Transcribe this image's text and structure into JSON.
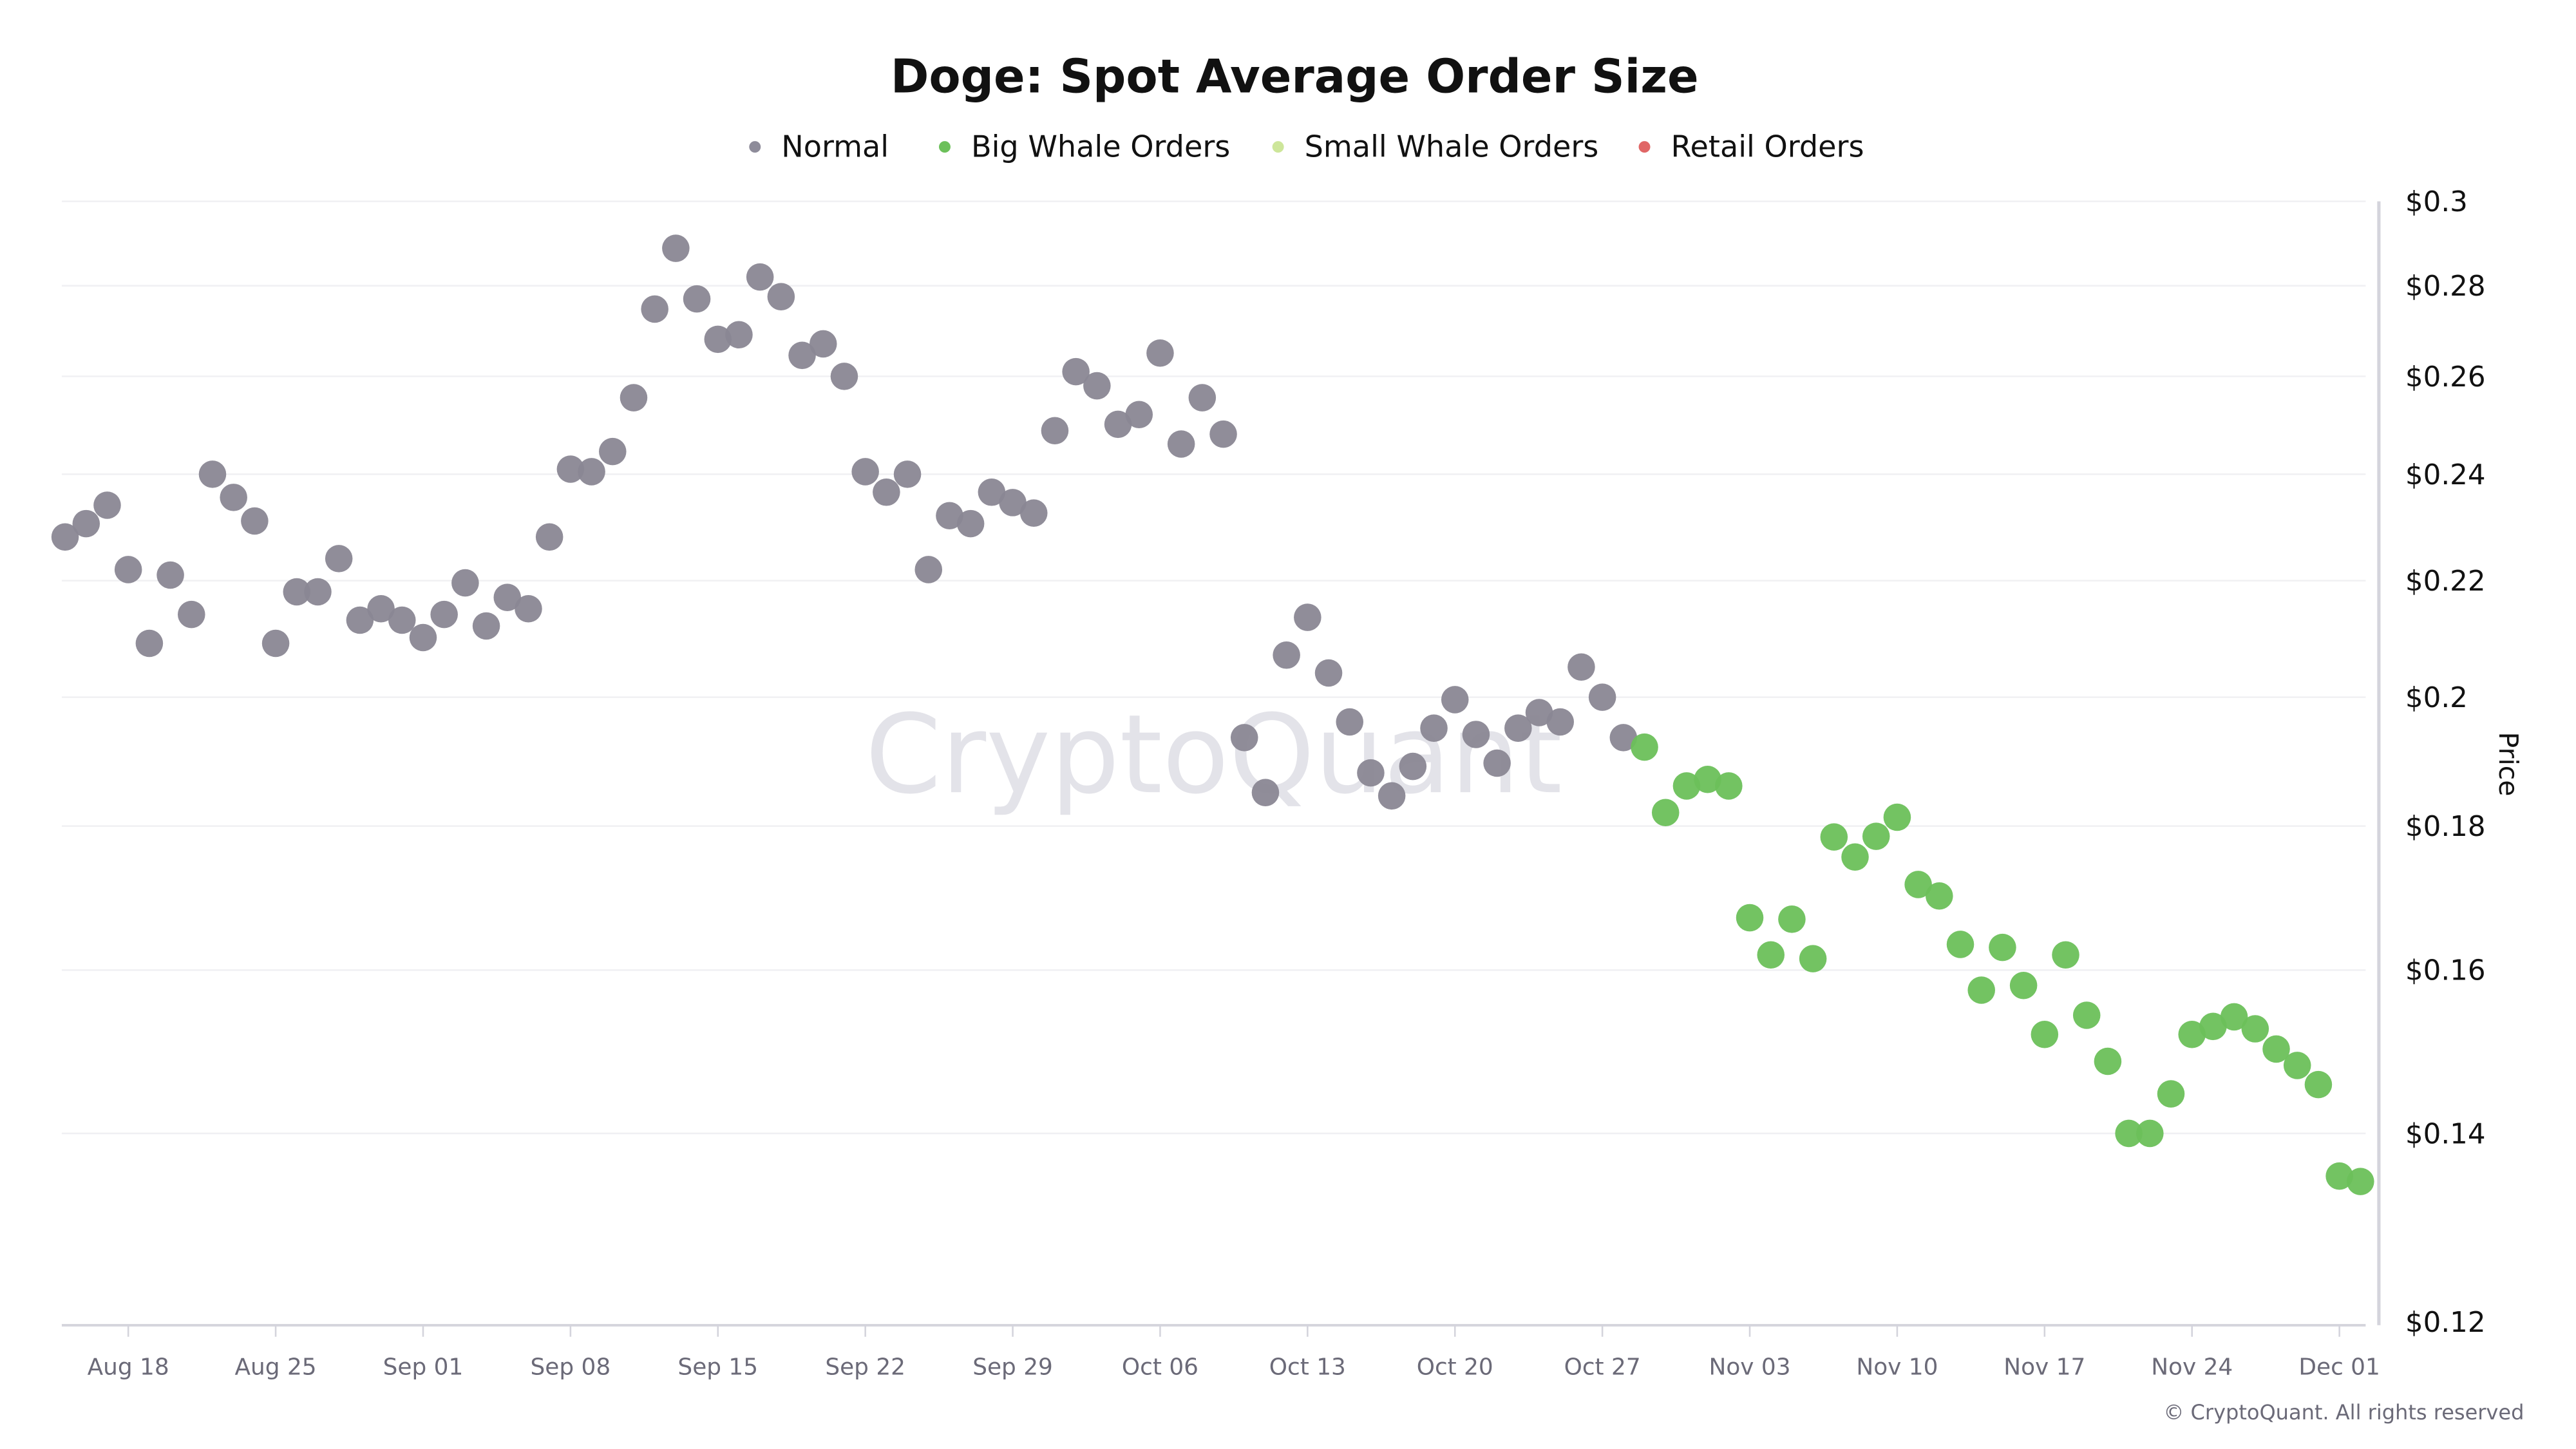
{
  "chart_data": {
    "type": "scatter",
    "title": "Doge: Spot Average Order Size",
    "ylabel": "Price",
    "xlabel": "",
    "y_scale": "log",
    "ylim": [
      0.12,
      0.3
    ],
    "grid": true,
    "legend_position": "top-center",
    "y_axis_side": "right",
    "y_ticks": [
      0.12,
      0.14,
      0.16,
      0.18,
      0.2,
      0.22,
      0.24,
      0.26,
      0.28,
      0.3
    ],
    "y_tick_labels": [
      "$0.12",
      "$0.14",
      "$0.16",
      "$0.18",
      "$0.2",
      "$0.22",
      "$0.24",
      "$0.26",
      "$0.28",
      "$0.3"
    ],
    "x_tick_labels": [
      "Aug 18",
      "Aug 25",
      "Sep 01",
      "Sep 08",
      "Sep 15",
      "Sep 22",
      "Sep 29",
      "Oct 06",
      "Oct 13",
      "Oct 20",
      "Oct 27",
      "Nov 03",
      "Nov 10",
      "Nov 17",
      "Nov 24",
      "Dec 01"
    ],
    "legend": [
      {
        "name": "Normal",
        "color": "#8e8c9a"
      },
      {
        "name": "Big Whale Orders",
        "color": "#6cc05a"
      },
      {
        "name": "Small Whale Orders",
        "color": "#cde69a"
      },
      {
        "name": "Retail Orders",
        "color": "#e06666"
      }
    ],
    "series": [
      {
        "name": "Normal",
        "color": "#8a8794",
        "x": [
          "Aug 15",
          "Aug 16",
          "Aug 17",
          "Aug 18",
          "Aug 19",
          "Aug 20",
          "Aug 21",
          "Aug 22",
          "Aug 23",
          "Aug 24",
          "Aug 25",
          "Aug 26",
          "Aug 27",
          "Aug 28",
          "Aug 29",
          "Aug 30",
          "Aug 31",
          "Sep 01",
          "Sep 02",
          "Sep 03",
          "Sep 04",
          "Sep 05",
          "Sep 06",
          "Sep 07",
          "Sep 08",
          "Sep 09",
          "Sep 10",
          "Sep 11",
          "Sep 12",
          "Sep 13",
          "Sep 14",
          "Sep 15",
          "Sep 16",
          "Sep 17",
          "Sep 18",
          "Sep 19",
          "Sep 20",
          "Sep 21",
          "Sep 22",
          "Sep 23",
          "Sep 24",
          "Sep 25",
          "Sep 26",
          "Sep 27",
          "Sep 28",
          "Sep 29",
          "Sep 30",
          "Oct 01",
          "Oct 02",
          "Oct 03",
          "Oct 04",
          "Oct 05",
          "Oct 06",
          "Oct 07",
          "Oct 08",
          "Oct 09",
          "Oct 10",
          "Oct 11",
          "Oct 12",
          "Oct 13",
          "Oct 14",
          "Oct 15",
          "Oct 16",
          "Oct 17",
          "Oct 18",
          "Oct 19",
          "Oct 20",
          "Oct 21",
          "Oct 22",
          "Oct 23",
          "Oct 24",
          "Oct 25",
          "Oct 26",
          "Oct 27",
          "Oct 28"
        ],
        "values": [
          0.228,
          0.2305,
          0.234,
          0.222,
          0.209,
          0.221,
          0.214,
          0.24,
          0.2355,
          0.231,
          0.209,
          0.218,
          0.218,
          0.224,
          0.213,
          0.215,
          0.213,
          0.21,
          0.214,
          0.2196,
          0.212,
          0.217,
          0.215,
          0.228,
          0.241,
          0.2405,
          0.2445,
          0.2555,
          0.2747,
          0.2887,
          0.277,
          0.268,
          0.269,
          0.282,
          0.2775,
          0.2645,
          0.267,
          0.26,
          0.2405,
          0.2365,
          0.24,
          0.222,
          0.232,
          0.2305,
          0.2365,
          0.2345,
          0.2325,
          0.2487,
          0.261,
          0.258,
          0.25,
          0.252,
          0.265,
          0.246,
          0.2555,
          0.248,
          0.1935,
          0.185,
          0.207,
          0.2135,
          0.204,
          0.196,
          0.188,
          0.1845,
          0.189,
          0.195,
          0.1996,
          0.194,
          0.1895,
          0.195,
          0.1975,
          0.196,
          0.205,
          0.2,
          0.1935
        ]
      },
      {
        "name": "Big Whale Orders",
        "color": "#6cc05a",
        "x": [
          "Oct 29",
          "Oct 30",
          "Oct 31",
          "Nov 01",
          "Nov 02",
          "Nov 03",
          "Nov 04",
          "Nov 05",
          "Nov 06",
          "Nov 07",
          "Nov 08",
          "Nov 09",
          "Nov 10",
          "Nov 11",
          "Nov 12",
          "Nov 13",
          "Nov 14",
          "Nov 15",
          "Nov 16",
          "Nov 17",
          "Nov 18",
          "Nov 19",
          "Nov 20",
          "Nov 21",
          "Nov 22",
          "Nov 23",
          "Nov 24",
          "Nov 25",
          "Nov 26",
          "Nov 27",
          "Nov 28",
          "Nov 29",
          "Nov 30",
          "Dec 01",
          "Dec 02"
        ],
        "values": [
          0.192,
          0.182,
          0.186,
          0.187,
          0.186,
          0.167,
          0.162,
          0.1668,
          0.1615,
          0.1784,
          0.1755,
          0.1785,
          0.1813,
          0.1716,
          0.17,
          0.1634,
          0.1574,
          0.163,
          0.158,
          0.1518,
          0.162,
          0.1542,
          0.1485,
          0.14,
          0.14,
          0.1446,
          0.1518,
          0.1528,
          0.154,
          0.1525,
          0.15,
          0.148,
          0.1457,
          0.1352,
          0.1346
        ]
      }
    ]
  },
  "watermark": "CryptoQuant",
  "copyright": "© CryptoQuant. All rights reserved"
}
